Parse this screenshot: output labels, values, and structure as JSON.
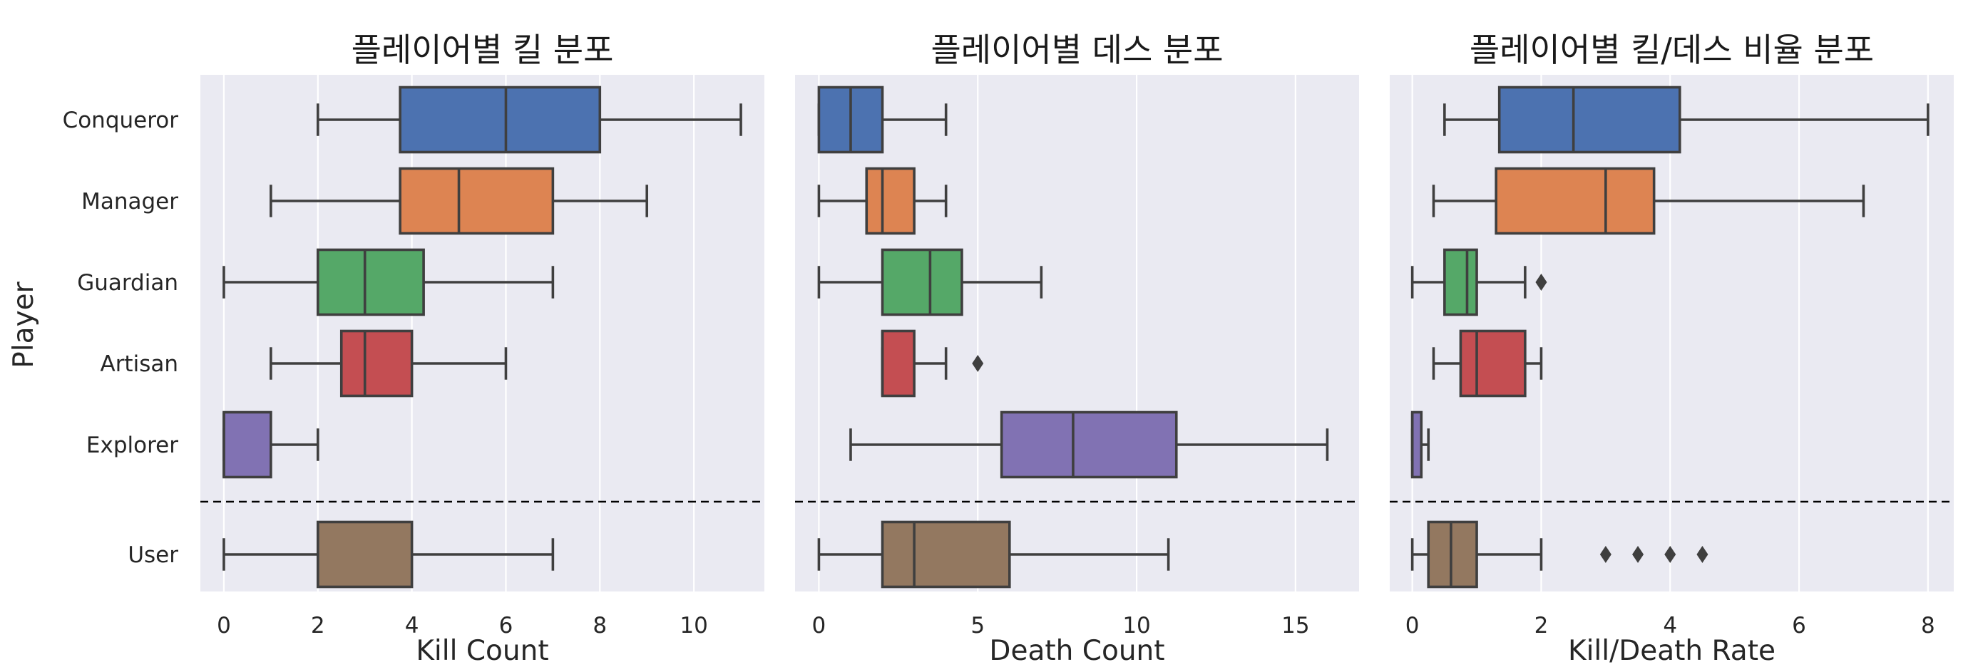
{
  "chart_data": {
    "type": "box",
    "y_axis_label": "Player",
    "categories": [
      "Conqueror",
      "Manager",
      "Guardian",
      "Artisan",
      "Explorer",
      "User"
    ],
    "colors": [
      "#4c72b0",
      "#dd8452",
      "#55a868",
      "#c44e52",
      "#8172b3",
      "#937860"
    ],
    "divider": "dashed line between Explorer and User",
    "panels": [
      {
        "title": "플레이어별 킬 분포",
        "xlabel": "Kill Count",
        "xlim": [
          -0.5,
          11.5
        ],
        "xticks": [
          0,
          2,
          4,
          6,
          8,
          10
        ],
        "boxes": [
          {
            "category": "Conqueror",
            "whisker_low": 2,
            "q1": 3.75,
            "median": 6,
            "q3": 8,
            "whisker_high": 11,
            "outliers": []
          },
          {
            "category": "Manager",
            "whisker_low": 1,
            "q1": 3.75,
            "median": 5,
            "q3": 7,
            "whisker_high": 9,
            "outliers": []
          },
          {
            "category": "Guardian",
            "whisker_low": 0,
            "q1": 2,
            "median": 3,
            "q3": 4.25,
            "whisker_high": 7,
            "outliers": []
          },
          {
            "category": "Artisan",
            "whisker_low": 1,
            "q1": 2.5,
            "median": 3,
            "q3": 4,
            "whisker_high": 6,
            "outliers": []
          },
          {
            "category": "Explorer",
            "whisker_low": 0,
            "q1": 0,
            "median": 0,
            "q3": 1,
            "whisker_high": 2,
            "outliers": []
          },
          {
            "category": "User",
            "whisker_low": 0,
            "q1": 2,
            "median": 2,
            "q3": 4,
            "whisker_high": 7,
            "outliers": []
          }
        ]
      },
      {
        "title": "플레이어별 데스 분포",
        "xlabel": "Death Count",
        "xlim": [
          -0.75,
          17
        ],
        "xticks": [
          0,
          5,
          10,
          15
        ],
        "boxes": [
          {
            "category": "Conqueror",
            "whisker_low": 0,
            "q1": 0,
            "median": 1,
            "q3": 2,
            "whisker_high": 4,
            "outliers": []
          },
          {
            "category": "Manager",
            "whisker_low": 0,
            "q1": 1.5,
            "median": 2,
            "q3": 3,
            "whisker_high": 4,
            "outliers": []
          },
          {
            "category": "Guardian",
            "whisker_low": 0,
            "q1": 2,
            "median": 3.5,
            "q3": 4.5,
            "whisker_high": 7,
            "outliers": []
          },
          {
            "category": "Artisan",
            "whisker_low": 2,
            "q1": 2,
            "median": 2,
            "q3": 3,
            "whisker_high": 4,
            "outliers": [
              5
            ]
          },
          {
            "category": "Explorer",
            "whisker_low": 1,
            "q1": 5.75,
            "median": 8,
            "q3": 11.25,
            "whisker_high": 16,
            "outliers": []
          },
          {
            "category": "User",
            "whisker_low": 0,
            "q1": 2,
            "median": 3,
            "q3": 6,
            "whisker_high": 11,
            "outliers": []
          }
        ]
      },
      {
        "title": "플레이어별 킬/데스 비율 분포",
        "xlabel": "Kill/Death Rate",
        "xlim": [
          -0.35,
          8.4
        ],
        "xticks": [
          0,
          2,
          4,
          6,
          8
        ],
        "boxes": [
          {
            "category": "Conqueror",
            "whisker_low": 0.5,
            "q1": 1.35,
            "median": 2.5,
            "q3": 4.15,
            "whisker_high": 8,
            "outliers": []
          },
          {
            "category": "Manager",
            "whisker_low": 0.33,
            "q1": 1.3,
            "median": 3,
            "q3": 3.75,
            "whisker_high": 7,
            "outliers": []
          },
          {
            "category": "Guardian",
            "whisker_low": 0,
            "q1": 0.5,
            "median": 0.85,
            "q3": 1,
            "whisker_high": 1.75,
            "outliers": [
              2
            ]
          },
          {
            "category": "Artisan",
            "whisker_low": 0.33,
            "q1": 0.75,
            "median": 1,
            "q3": 1.75,
            "whisker_high": 2,
            "outliers": []
          },
          {
            "category": "Explorer",
            "whisker_low": 0,
            "q1": 0,
            "median": 0,
            "q3": 0.14,
            "whisker_high": 0.25,
            "outliers": []
          },
          {
            "category": "User",
            "whisker_low": 0,
            "q1": 0.25,
            "median": 0.6,
            "q3": 1,
            "whisker_high": 2,
            "outliers": [
              3,
              3.5,
              4,
              4.5
            ]
          }
        ]
      }
    ]
  }
}
